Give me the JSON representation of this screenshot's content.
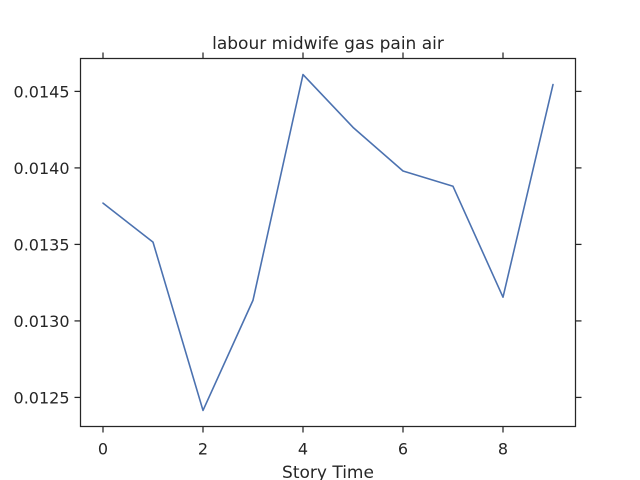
{
  "chart_data": {
    "type": "line",
    "title": "labour midwife gas pain air",
    "xlabel": "Story Time",
    "ylabel": "",
    "x": [
      0,
      1,
      2,
      3,
      4,
      5,
      6,
      7,
      8,
      9
    ],
    "series": [
      {
        "values": [
          0.01377,
          0.013515,
          0.012415,
          0.013135,
          0.01461,
          0.014265,
          0.01398,
          0.01388,
          0.013155,
          0.014545
        ],
        "color": "#4c72b0"
      }
    ],
    "xlim": [
      -0.45,
      9.45
    ],
    "ylim": [
      0.01231,
      0.014715
    ],
    "x_ticks": [
      0,
      2,
      4,
      6,
      8
    ],
    "x_tick_labels": [
      "0",
      "2",
      "4",
      "6",
      "8"
    ],
    "y_ticks": [
      0.0125,
      0.013,
      0.0135,
      0.014,
      0.0145
    ],
    "y_tick_labels": [
      "0.0125",
      "0.0130",
      "0.0135",
      "0.0140",
      "0.0145"
    ],
    "grid": false,
    "legend": "none"
  }
}
